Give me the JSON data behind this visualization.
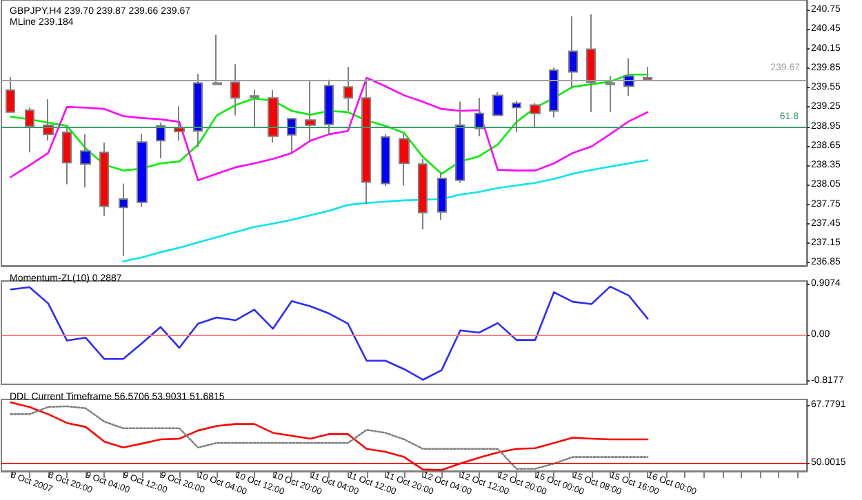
{
  "chart_data": [
    {
      "type": "candlestick",
      "title": "GBPJPY,H4 239.70 239.87 239.66 239.67",
      "subtitle": "MLine 239.184",
      "categories": [
        null,
        null,
        null,
        null,
        null,
        null,
        null,
        null,
        null,
        null,
        null,
        null,
        null,
        null,
        null,
        null,
        null,
        null,
        null,
        null,
        null,
        null,
        null,
        null,
        null,
        null,
        null,
        null,
        null,
        null,
        null,
        null,
        null,
        null,
        null
      ],
      "ohlc": [
        [
          239.51,
          239.71,
          239.17,
          239.17
        ],
        [
          239.2,
          239.24,
          238.55,
          238.95
        ],
        [
          238.97,
          239.37,
          238.73,
          238.83
        ],
        [
          238.86,
          238.93,
          238.06,
          238.39
        ],
        [
          238.37,
          238.83,
          238.01,
          238.57
        ],
        [
          238.55,
          238.7,
          237.57,
          237.72
        ],
        [
          237.7,
          238.07,
          236.95,
          237.83
        ],
        [
          237.78,
          238.84,
          237.71,
          238.71
        ],
        [
          238.73,
          239.01,
          238.46,
          238.96
        ],
        [
          238.93,
          239.26,
          238.73,
          238.87
        ],
        [
          238.88,
          239.76,
          238.63,
          239.62
        ],
        [
          239.62,
          240.36,
          239.6,
          239.6
        ],
        [
          239.63,
          239.91,
          239.12,
          239.39
        ],
        [
          239.42,
          239.52,
          238.93,
          239.4
        ],
        [
          239.39,
          239.51,
          238.7,
          238.8
        ],
        [
          238.82,
          239.07,
          238.55,
          239.07
        ],
        [
          239.05,
          239.65,
          238.73,
          238.97
        ],
        [
          238.98,
          239.67,
          238.83,
          239.58
        ],
        [
          239.56,
          239.87,
          239.19,
          239.39
        ],
        [
          239.39,
          239.7,
          237.75,
          238.09
        ],
        [
          238.07,
          238.83,
          238.03,
          238.79
        ],
        [
          238.76,
          238.83,
          238.04,
          238.38
        ],
        [
          238.37,
          238.45,
          237.36,
          237.62
        ],
        [
          237.63,
          238.25,
          237.51,
          238.15
        ],
        [
          238.12,
          239.33,
          238.08,
          238.97
        ],
        [
          238.92,
          239.39,
          238.8,
          239.15
        ],
        [
          239.12,
          239.48,
          239.11,
          239.43
        ],
        [
          239.24,
          239.35,
          238.86,
          239.31
        ],
        [
          239.28,
          239.31,
          238.93,
          239.15
        ],
        [
          239.19,
          239.86,
          239.09,
          239.82
        ],
        [
          239.79,
          240.65,
          239.54,
          240.11
        ],
        [
          240.14,
          240.68,
          239.17,
          239.63
        ],
        [
          239.62,
          239.73,
          239.17,
          239.6
        ],
        [
          239.57,
          240.0,
          239.42,
          239.73
        ],
        [
          239.7,
          239.87,
          239.66,
          239.67
        ]
      ],
      "colors": [
        "#ff0000",
        "#ff0000",
        "#ff0000",
        "#ff0000",
        "#0000ff",
        "#ff0000",
        "#0000ff",
        "#0000ff",
        "#0000ff",
        "#ff0000",
        "#0000ff",
        "#000000",
        "#ff0000",
        "#000000",
        "#ff0000",
        "#0000ff",
        "#ff0000",
        "#0000ff",
        "#ff0000",
        "#ff0000",
        "#0000ff",
        "#ff0000",
        "#ff0000",
        "#0000ff",
        "#0000ff",
        "#0000ff",
        "#0000ff",
        "#0000ff",
        "#ff0000",
        "#0000ff",
        "#0000ff",
        "#ff0000",
        "#000000",
        "#0000ff",
        "#ff0000"
      ],
      "series": [
        {
          "type": "line",
          "color": "#00ee00",
          "values": [
            239.1,
            239.06,
            239.01,
            238.96,
            238.61,
            238.36,
            238.27,
            238.3,
            238.38,
            238.41,
            238.67,
            239.12,
            239.28,
            239.38,
            239.35,
            239.19,
            239.13,
            239.19,
            239.17,
            239.04,
            238.96,
            238.85,
            238.48,
            238.22,
            238.41,
            238.49,
            238.67,
            239.02,
            239.24,
            239.39,
            239.56,
            239.6,
            239.64,
            239.75,
            239.75
          ]
        },
        {
          "type": "line",
          "color": "#ff00ff",
          "values": [
            238.17,
            238.35,
            238.54,
            239.25,
            239.24,
            239.22,
            239.11,
            239.08,
            239.06,
            239.02,
            238.12,
            238.22,
            238.32,
            238.38,
            238.45,
            238.54,
            238.73,
            238.83,
            238.88,
            239.7,
            239.57,
            239.43,
            239.33,
            239.22,
            239.19,
            239.2,
            238.28,
            238.27,
            238.27,
            238.38,
            238.54,
            238.64,
            238.83,
            239.03,
            239.17
          ]
        },
        {
          "type": "line",
          "color": "#00e5ee",
          "values": [
            null,
            null,
            null,
            null,
            null,
            null,
            236.87,
            236.93,
            237.01,
            237.08,
            237.16,
            237.24,
            237.32,
            237.4,
            237.45,
            237.51,
            237.58,
            237.65,
            237.74,
            237.77,
            237.79,
            237.81,
            237.82,
            237.83,
            237.9,
            237.94,
            238.0,
            238.04,
            238.08,
            238.14,
            238.22,
            238.28,
            238.33,
            238.38,
            238.43
          ]
        }
      ],
      "ylim": [
        236.8,
        240.9
      ],
      "yticks": [
        240.75,
        240.45,
        240.15,
        239.85,
        239.55,
        239.25,
        238.95,
        238.65,
        238.35,
        238.05,
        237.75,
        237.45,
        237.15,
        236.85
      ],
      "ref_lines": [
        {
          "axis": "y",
          "value": 239.67,
          "label": "239.67",
          "color": "#a0a0a0"
        },
        {
          "axis": "y",
          "value": 238.93,
          "color": "#3c9a6e"
        }
      ],
      "annotations": [
        {
          "text": "61.8",
          "y": 238.93
        }
      ],
      "tick_labels": "y"
    },
    {
      "type": "line",
      "title": "Momentum-ZL(10) 0.2887",
      "categories": [
        null,
        null,
        null,
        null,
        null,
        null,
        null,
        null,
        null,
        null,
        null,
        null,
        null,
        null,
        null,
        null,
        null,
        null,
        null,
        null,
        null,
        null,
        null,
        null,
        null,
        null,
        null,
        null,
        null,
        null,
        null,
        null,
        null,
        null,
        null
      ],
      "series": [
        {
          "color": "#2b2bff",
          "values": [
            0.81,
            0.85,
            0.56,
            -0.1,
            -0.05,
            -0.43,
            -0.43,
            -0.15,
            0.14,
            -0.23,
            0.2,
            0.31,
            0.26,
            0.45,
            0.11,
            0.6,
            0.51,
            0.38,
            0.2,
            -0.46,
            -0.46,
            -0.61,
            -0.8,
            -0.63,
            0.08,
            0.04,
            0.21,
            -0.09,
            -0.09,
            0.76,
            0.59,
            0.55,
            0.86,
            0.7,
            0.29
          ]
        }
      ],
      "ylim": [
        -0.88,
        0.96
      ],
      "yticks": [
        0.9074,
        {
          "value": 0,
          "label": "0.00"
        },
        -0.8177
      ],
      "ref_lines": [
        {
          "axis": "y",
          "value": 0,
          "color": "#ff8080"
        }
      ],
      "tick_labels": "y"
    },
    {
      "type": "line",
      "title": "DDL Current Timeframe 56.5706 53.9031 51.6815",
      "categories": [
        "8 Oct 2007",
        null,
        "8 Oct 20:00",
        null,
        "9 Oct 04:00",
        null,
        "9 Oct 12:00",
        null,
        "9 Oct 20:00",
        null,
        "10 Oct 04:00",
        null,
        "10 Oct 12:00",
        null,
        "10 Oct 20:00",
        null,
        "11 Oct 04:00",
        null,
        "11 Oct 12:00",
        null,
        "11 Oct 20:00",
        null,
        "12 Oct 04:00",
        null,
        "12 Oct 12:00",
        null,
        "12 Oct 20:00",
        null,
        "15 Oct 00:00",
        null,
        "15 Oct 08:00",
        null,
        "15 Oct 16:00",
        null,
        "16 Oct 00:00"
      ],
      "series": [
        {
          "color": "#ff0000",
          "values": [
            68.5,
            67.1,
            64.9,
            62.2,
            61.0,
            56.5,
            54.7,
            55.9,
            57.2,
            57.4,
            59.9,
            61.3,
            61.9,
            61.9,
            59.2,
            58.3,
            57.4,
            58.8,
            58.8,
            54.3,
            53.4,
            51.8,
            48.0,
            47.8,
            49.8,
            51.6,
            53.2,
            54.3,
            54.5,
            56.1,
            57.7,
            57.4,
            57.2,
            57.2,
            57.2
          ]
        },
        {
          "color": "#808080",
          "line_style": "dotted",
          "values": [
            64.9,
            64.9,
            67.1,
            67.3,
            66.7,
            62.6,
            60.6,
            60.6,
            60.6,
            60.6,
            54.7,
            56.1,
            56.1,
            56.1,
            56.1,
            56.1,
            56.1,
            56.1,
            56.1,
            60.1,
            59.2,
            57.2,
            54.3,
            54.3,
            54.3,
            54.3,
            54.3,
            48.2,
            48.2,
            49.8,
            51.8,
            51.8,
            51.8,
            51.8,
            51.8
          ]
        }
      ],
      "ylim": [
        47.5,
        69.4
      ],
      "yticks": [
        67.7791,
        50.0015
      ],
      "ref_lines": [
        {
          "axis": "y",
          "value": 50,
          "color": "#ff0000"
        }
      ]
    }
  ]
}
